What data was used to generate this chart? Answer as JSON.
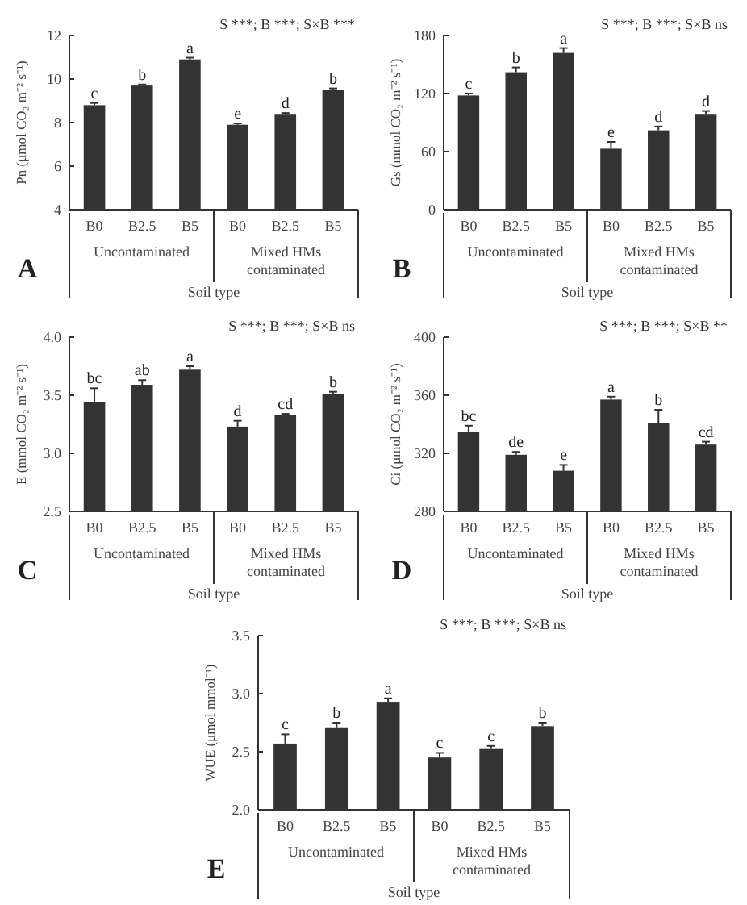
{
  "chart_data": [
    {
      "type": "bar",
      "categories": [
        "B0",
        "B2.5",
        "B5",
        "B0",
        "B2.5",
        "B5"
      ],
      "values": [
        8.8,
        9.7,
        10.9,
        7.9,
        8.4,
        9.5
      ],
      "errors": [
        0.1,
        0.05,
        0.08,
        0.06,
        0.04,
        0.07
      ],
      "value_labels": [
        "c",
        "b",
        "a",
        "e",
        "d",
        "b"
      ],
      "color": "#333333",
      "ylim": [
        4,
        12
      ],
      "yticks": [
        4,
        6,
        8,
        10,
        12
      ],
      "ylabel": "Pn (μmol CO₂ m⁻² s⁻¹)",
      "xlabel": "Soil type",
      "annotations": [
        "S ***; B ***; S×B ***",
        "A",
        "Uncontaminated",
        "Mixed HMs contaminated"
      ]
    },
    {
      "type": "bar",
      "categories": [
        "B0",
        "B2.5",
        "B5",
        "B0",
        "B2.5",
        "B5"
      ],
      "values": [
        118,
        142,
        162,
        63,
        82,
        99
      ],
      "errors": [
        2,
        5,
        5,
        7,
        4,
        3
      ],
      "value_labels": [
        "c",
        "b",
        "a",
        "e",
        "d",
        "d"
      ],
      "color": "#333333",
      "ylim": [
        0,
        180
      ],
      "yticks": [
        0,
        60,
        120,
        180
      ],
      "ylabel": "Gs (mmol CO₂ m⁻² s⁻¹)",
      "xlabel": "Soil type",
      "annotations": [
        "S ***; B ***; S×B ns",
        "B",
        "Uncontaminated",
        "Mixed HMs contaminated"
      ]
    },
    {
      "type": "bar",
      "categories": [
        "B0",
        "B2.5",
        "B5",
        "B0",
        "B2.5",
        "B5"
      ],
      "values": [
        3.44,
        3.59,
        3.72,
        3.23,
        3.33,
        3.51
      ],
      "errors": [
        0.12,
        0.04,
        0.03,
        0.05,
        0.01,
        0.02
      ],
      "value_labels": [
        "bc",
        "ab",
        "a",
        "d",
        "cd",
        "b"
      ],
      "color": "#333333",
      "ylim": [
        2.5,
        4
      ],
      "yticks": [
        2.5,
        {
          "value": 3,
          "label": "3.0"
        },
        3.5,
        {
          "value": 4,
          "label": "4.0"
        }
      ],
      "ylabel": "E (mmol CO₂ m⁻² s⁻¹)",
      "xlabel": "Soil type",
      "annotations": [
        "S ***; B ***; S×B ns",
        "C",
        "Uncontaminated",
        "Mixed HMs contaminated"
      ]
    },
    {
      "type": "bar",
      "categories": [
        "B0",
        "B2.5",
        "B5",
        "B0",
        "B2.5",
        "B5"
      ],
      "values": [
        335,
        319,
        308,
        357,
        341,
        326
      ],
      "errors": [
        4,
        2,
        4,
        2,
        9,
        2
      ],
      "value_labels": [
        "bc",
        "de",
        "e",
        "a",
        "b",
        "cd"
      ],
      "color": "#333333",
      "ylim": [
        280,
        400
      ],
      "yticks": [
        280,
        320,
        360,
        400
      ],
      "ylabel": "Ci (μmol CO₂ m⁻² s⁻¹)",
      "xlabel": "Soil type",
      "annotations": [
        "S ***; B ***; S×B **",
        "D",
        "Uncontaminated",
        "Mixed HMs contaminated"
      ]
    },
    {
      "type": "bar",
      "categories": [
        "B0",
        "B2.5",
        "B5",
        "B0",
        "B2.5",
        "B5"
      ],
      "values": [
        2.57,
        2.71,
        2.93,
        2.45,
        2.53,
        2.72
      ],
      "errors": [
        0.08,
        0.04,
        0.03,
        0.04,
        0.02,
        0.03
      ],
      "value_labels": [
        "c",
        "b",
        "a",
        "c",
        "c",
        "b"
      ],
      "color": "#333333",
      "ylim": [
        2,
        3.5
      ],
      "yticks": [
        {
          "value": 2,
          "label": "2.0"
        },
        2.5,
        {
          "value": 3,
          "label": "3.0"
        },
        3.5
      ],
      "ylabel": "WUE (μmol mmol⁻¹)",
      "xlabel": "Soil type",
      "annotations": [
        "S ***; B ***; S×B ns",
        "E",
        "Uncontaminated",
        "Mixed HMs contaminated"
      ]
    }
  ]
}
